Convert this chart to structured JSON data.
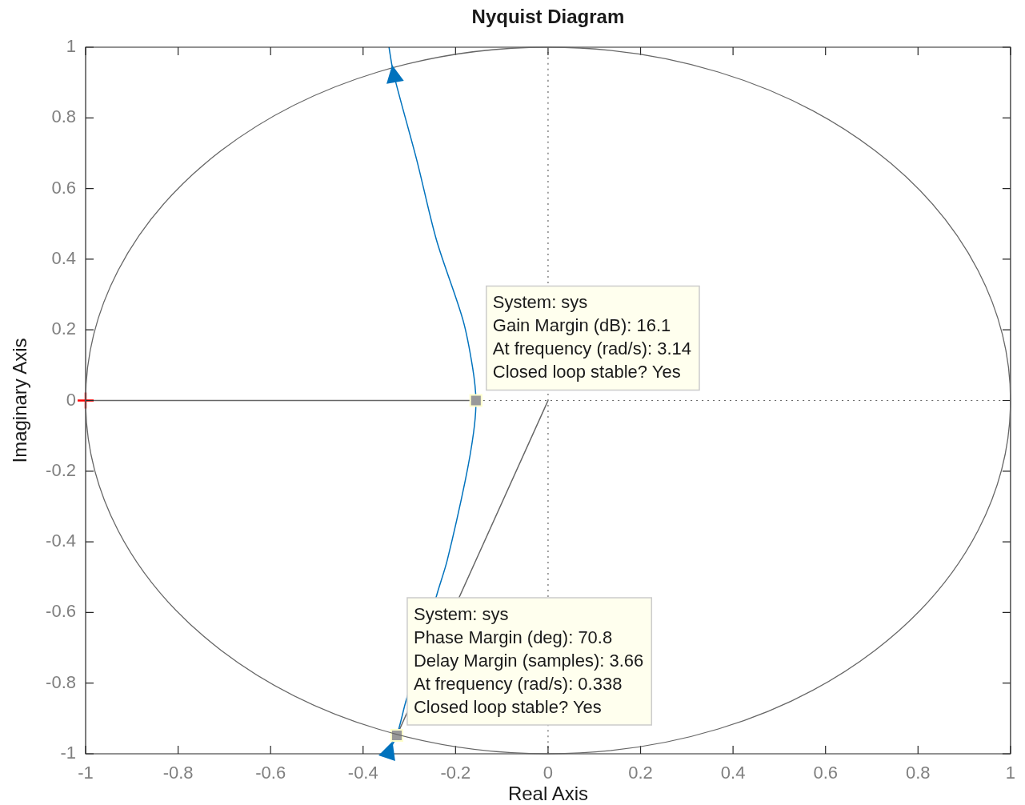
{
  "chart_data": {
    "type": "line",
    "title": "Nyquist Diagram",
    "xlabel": "Real Axis",
    "ylabel": "Imaginary Axis",
    "xlim": [
      -1,
      1
    ],
    "ylim": [
      -1,
      1
    ],
    "xticks": [
      -1,
      -0.8,
      -0.6,
      -0.4,
      -0.2,
      0,
      0.2,
      0.4,
      0.6,
      0.8,
      1
    ],
    "yticks": [
      -1,
      -0.8,
      -0.6,
      -0.4,
      -0.2,
      0,
      0.2,
      0.4,
      0.6,
      0.8,
      1
    ],
    "series": [
      {
        "type": "line",
        "color": "#666666",
        "line_style": "dotted",
        "x": [
          0,
          0
        ],
        "values": [
          -1,
          1
        ]
      },
      {
        "type": "line",
        "color": "#666666",
        "line_style": "dotted",
        "x": [
          -1,
          1
        ],
        "values": [
          0,
          0
        ]
      },
      {
        "type": "line",
        "color": "#666666",
        "x": [
          -1,
          -0.156
        ],
        "values": [
          0,
          0
        ]
      },
      {
        "type": "line",
        "color": "#666666",
        "x": [
          0,
          -0.327
        ],
        "values": [
          0,
          -0.948
        ]
      },
      {
        "type": "line",
        "color": "#0072bd",
        "x": [
          -0.344,
          -0.334,
          -0.284,
          -0.241,
          -0.184,
          -0.163,
          -0.156,
          -0.161,
          -0.179,
          -0.218,
          -0.239,
          -0.308,
          -0.327,
          -0.343,
          -0.35
        ],
        "values": [
          1,
          0.925,
          0.681,
          0.453,
          0.228,
          0.092,
          0,
          -0.09,
          -0.226,
          -0.452,
          -0.543,
          -0.854,
          -0.948,
          -0.989,
          -1
        ]
      },
      {
        "type": "scatter",
        "marker": "cross",
        "color": "#ff0000",
        "x": [
          -1
        ],
        "values": [
          0
        ]
      },
      {
        "type": "scatter",
        "marker": "square",
        "color": "#999999",
        "x": [
          -0.156,
          -0.327
        ],
        "values": [
          0,
          -0.948
        ]
      }
    ],
    "annotations": [
      {
        "text": "System: sys\nGain Margin (dB): 16.1\nAt frequency (rad/s): 3.14\nClosed loop stable? Yes",
        "x": -0.156,
        "y": 0
      },
      {
        "text": "System: sys\nPhase Margin (deg): 70.8\nDelay Margin (samples): 3.66\nAt frequency (rad/s): 0.338\nClosed loop stable? Yes",
        "x": -0.327,
        "y": -0.948
      }
    ]
  }
}
